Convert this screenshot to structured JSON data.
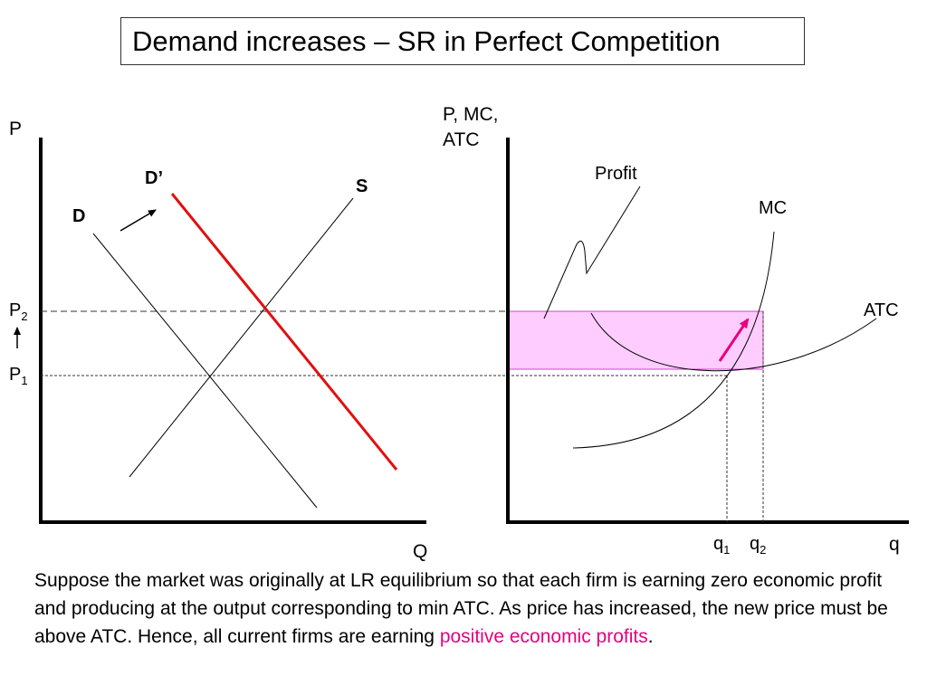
{
  "title": "Demand increases – SR in Perfect Competition",
  "market": {
    "y_axis_label": "P",
    "x_axis_label": "Q",
    "demand_label": "D",
    "new_demand_label": "D’",
    "supply_label": "S",
    "price_labels": {
      "p2_main": "P",
      "p2_sub": "2",
      "p1_main": "P",
      "p1_sub": "1"
    }
  },
  "firm": {
    "y_axis_label_line1": "P, MC,",
    "y_axis_label_line2": "ATC",
    "x_axis_label": "q",
    "profit_label": "Profit",
    "mc_label": "MC",
    "atc_label": "ATC",
    "q1_main": "q",
    "q1_sub": "1",
    "q2_main": "q",
    "q2_sub": "2"
  },
  "colors": {
    "new_demand": "#e01010",
    "profit_fill": "#ffccff",
    "profit_border": "#cc44cc",
    "arrow_pink": "#e6007e",
    "highlight": "#e6007e"
  },
  "caption": {
    "text": "Suppose the market was originally at LR equilibrium so that each firm is earning zero economic profit and producing at the output corresponding to min ATC.  As price has increased, the new price must be above ATC.  Hence, all current firms are earning ",
    "highlight": "positive economic profits",
    "end": "."
  }
}
